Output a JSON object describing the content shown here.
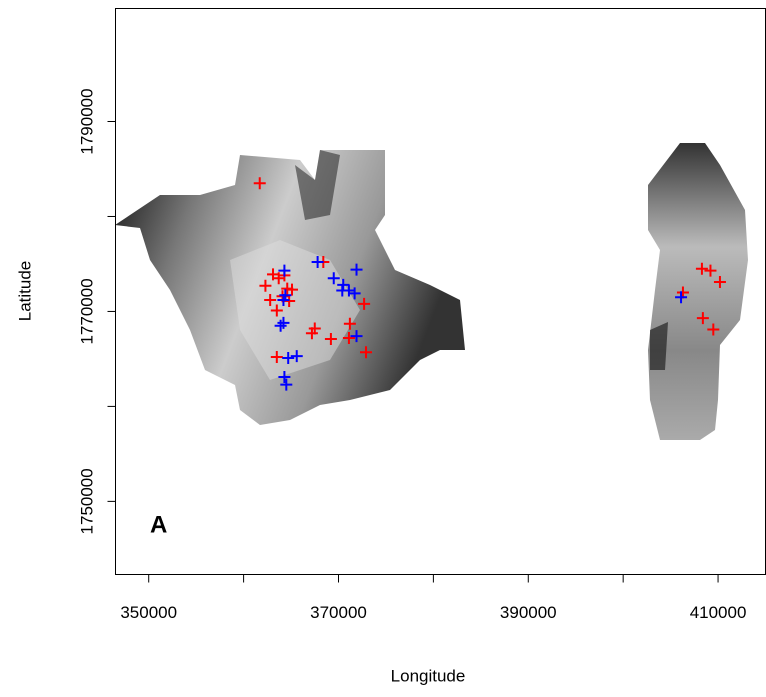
{
  "chart_data": {
    "type": "scatter",
    "xlabel": "Longitude",
    "ylabel": "Latitude",
    "annotation": "A",
    "xlim": [
      346500,
      415000
    ],
    "ylim": [
      1742300,
      1801900
    ],
    "xticks": [
      350000,
      360000,
      370000,
      380000,
      390000,
      400000,
      410000
    ],
    "yticks": [
      1750000,
      1760000,
      1770000,
      1780000,
      1790000
    ],
    "tick_label_every": 2,
    "marker": "plus",
    "series": [
      {
        "color": "#ff0000",
        "x": [
          361700,
          363100,
          362300,
          362800,
          363500,
          363700,
          364300,
          364600,
          365100,
          364100,
          364800,
          363500,
          367500,
          367200,
          368400,
          369200,
          371200,
          371100,
          372700,
          372900,
          408300,
          409200,
          410200,
          408400,
          409500,
          406300
        ],
        "values": [
          1783500,
          1773900,
          1772700,
          1771200,
          1770100,
          1773500,
          1773800,
          1772400,
          1772300,
          1771600,
          1771100,
          1765200,
          1768200,
          1767700,
          1775200,
          1767100,
          1768700,
          1767200,
          1770800,
          1765700,
          1774500,
          1774300,
          1773100,
          1769300,
          1768100,
          1772000
        ]
      },
      {
        "color": "#0000ff",
        "x": [
          364300,
          367800,
          371900,
          369500,
          370500,
          371100,
          371700,
          370400,
          364200,
          364400,
          364200,
          363900,
          364700,
          365600,
          364300,
          364500,
          371900,
          406100
        ],
        "values": [
          1774300,
          1775200,
          1774400,
          1773500,
          1772800,
          1772200,
          1771900,
          1772200,
          1771200,
          1771700,
          1768800,
          1768500,
          1765100,
          1765300,
          1763100,
          1762300,
          1767400,
          1771500
        ]
      }
    ]
  }
}
